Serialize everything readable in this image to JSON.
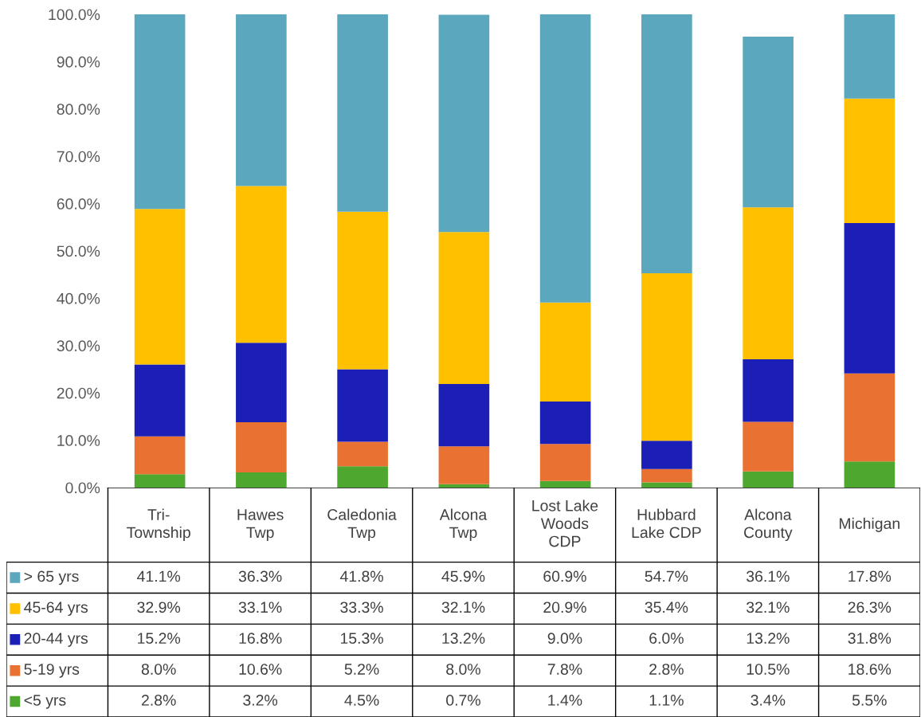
{
  "chart_data": {
    "type": "bar",
    "stacked": true,
    "legend": "bottom",
    "grid": false,
    "categories": [
      "Tri-Township",
      "Hawes Twp",
      "Caledonia Twp",
      "Alcona Twp",
      "Lost Lake Woods CDP",
      "Hubbard Lake CDP",
      "Alcona County",
      "Michigan"
    ],
    "ylim": [
      0,
      100
    ],
    "yticks": [
      {
        "value": 0,
        "label": "0.0%"
      },
      {
        "value": 10,
        "label": "10.0%"
      },
      {
        "value": 20,
        "label": "20.0%"
      },
      {
        "value": 30,
        "label": "30.0%"
      },
      {
        "value": 40,
        "label": "40.0%"
      },
      {
        "value": 50,
        "label": "50.0%"
      },
      {
        "value": 60,
        "label": "60.0%"
      },
      {
        "value": 70,
        "label": "70.0%"
      },
      {
        "value": 80,
        "label": "80.0%"
      },
      {
        "value": 90,
        "label": "90.0%"
      },
      {
        "value": 100,
        "label": "100.0%"
      }
    ],
    "series": [
      {
        "name": "<5 yrs",
        "color": "#4ea72e",
        "values": [
          2.8,
          3.2,
          4.5,
          0.7,
          1.4,
          1.1,
          3.4,
          5.5
        ],
        "value_labels": [
          "2.8%",
          "3.2%",
          "4.5%",
          "0.7%",
          "1.4%",
          "1.1%",
          "3.4%",
          "5.5%"
        ]
      },
      {
        "name": "5-19 yrs",
        "color": "#e97132",
        "values": [
          8.0,
          10.6,
          5.2,
          8.0,
          7.8,
          2.8,
          10.5,
          18.6
        ],
        "value_labels": [
          "8.0%",
          "10.6%",
          "5.2%",
          "8.0%",
          "7.8%",
          "2.8%",
          "10.5%",
          "18.6%"
        ]
      },
      {
        "name": "20-44 yrs",
        "color": "#1b1fb5",
        "values": [
          15.2,
          16.8,
          15.3,
          13.2,
          9.0,
          6.0,
          13.2,
          31.8
        ],
        "value_labels": [
          "15.2%",
          "16.8%",
          "15.3%",
          "13.2%",
          "9.0%",
          "6.0%",
          "13.2%",
          "31.8%"
        ]
      },
      {
        "name": "45-64 yrs",
        "color": "#ffc000",
        "values": [
          32.9,
          33.1,
          33.3,
          32.1,
          20.9,
          35.4,
          32.1,
          26.3
        ],
        "value_labels": [
          "32.9%",
          "33.1%",
          "33.3%",
          "32.1%",
          "20.9%",
          "35.4%",
          "32.1%",
          "26.3%"
        ]
      },
      {
        "name": "> 65 yrs",
        "color": "#5ba7bd",
        "values": [
          41.1,
          36.3,
          41.8,
          45.9,
          60.9,
          54.7,
          36.1,
          17.8
        ],
        "value_labels": [
          "41.1%",
          "36.3%",
          "41.8%",
          "45.9%",
          "60.9%",
          "54.7%",
          "36.1%",
          "17.8%"
        ]
      }
    ]
  }
}
